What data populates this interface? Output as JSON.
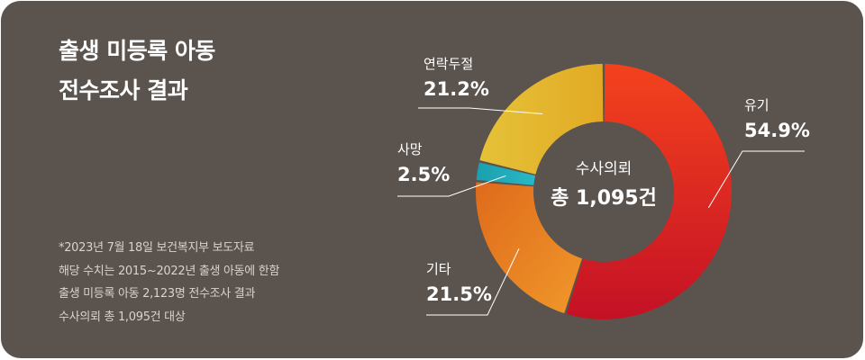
{
  "header": {
    "title_line1": "출생 미등록 아동",
    "title_line2": "전수조사 결과"
  },
  "notes": [
    "*2023년 7월 18일 보건복지부 보도자료",
    "해당 수치는 2015~2022년 출생 아동에 한함",
    "출생 미등록 아동 2,123명 전수조사 결과",
    "수사의뢰 총 1,095건 대상"
  ],
  "colors": {
    "background": "#5b534d",
    "유기": "#d4262a",
    "기타": "#e57a22",
    "사망": "#1fa5b5",
    "연락두절": "#e6bb2a"
  },
  "chart_data": {
    "type": "pie",
    "donut": true,
    "center_caption": "수사의뢰",
    "center_total": "총 1,095건",
    "slices": [
      {
        "label": "유기",
        "value": 54.9,
        "display": "54.9%",
        "color": "#d4262a"
      },
      {
        "label": "기타",
        "value": 21.5,
        "display": "21.5%",
        "color": "#e57a22"
      },
      {
        "label": "사망",
        "value": 2.5,
        "display": "2.5%",
        "color": "#1fa5b5"
      },
      {
        "label": "연락두절",
        "value": 21.2,
        "display": "21.2%",
        "color": "#e6bb2a"
      }
    ]
  }
}
